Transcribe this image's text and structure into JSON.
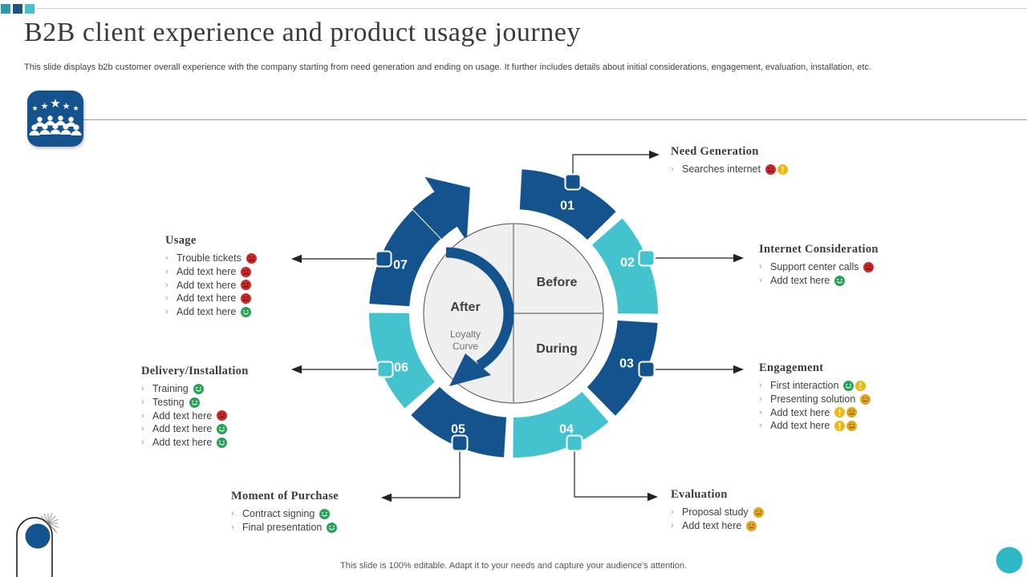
{
  "slide": {
    "title": "B2B client experience and product usage journey",
    "subtitle": "This slide displays b2b customer overall experience with the company starting from need generation and ending on usage. It  further includes details about initial  considerations, engagement, evaluation, installation,  etc.",
    "footer": "This slide is 100% editable.  Adapt it to your needs and capture your audience's attention."
  },
  "colors": {
    "navy": "#15538e",
    "teal": "#44c3cf",
    "accent_square_1": "#2d9aa9",
    "accent_square_2": "#1c537f",
    "accent_square_3": "#45bfcb",
    "corner_dot": "#2eb8c5",
    "happy": "#27a355",
    "sad": "#c62a2a",
    "neutral": "#dfa61f",
    "warning": "#efb810"
  },
  "wheel": {
    "center": {
      "before": "Before",
      "during": "During",
      "after": "After",
      "loyalty": [
        "Loyalty",
        "Curve"
      ]
    },
    "segments": [
      {
        "number": "01",
        "color": "#15538e"
      },
      {
        "number": "02",
        "color": "#44c3cf"
      },
      {
        "number": "03",
        "color": "#15538e"
      },
      {
        "number": "04",
        "color": "#44c3cf"
      },
      {
        "number": "05",
        "color": "#15538e"
      },
      {
        "number": "06",
        "color": "#44c3cf"
      },
      {
        "number": "07",
        "color": "#15538e"
      }
    ]
  },
  "sections": [
    {
      "id": "need-generation",
      "title": "Need Generation",
      "items": [
        {
          "text": "Searches internet",
          "icons": [
            "sad",
            "warn"
          ]
        }
      ]
    },
    {
      "id": "internet-consideration",
      "title": "Internet  Consideration",
      "items": [
        {
          "text": "Support center calls",
          "icons": [
            "sad"
          ]
        },
        {
          "text": "Add text here",
          "icons": [
            "happy"
          ]
        }
      ]
    },
    {
      "id": "engagement",
      "title": "Engagement",
      "items": [
        {
          "text": "First interaction",
          "icons": [
            "happy",
            "warn"
          ]
        },
        {
          "text": "Presenting solution",
          "icons": [
            "neutral"
          ]
        },
        {
          "text": "Add text here",
          "icons": [
            "warn",
            "neutral"
          ]
        },
        {
          "text": "Add text here",
          "icons": [
            "warn",
            "neutral"
          ]
        }
      ]
    },
    {
      "id": "evaluation",
      "title": "Evaluation",
      "items": [
        {
          "text": "Proposal study",
          "icons": [
            "neutral"
          ]
        },
        {
          "text": "Add text here",
          "icons": [
            "neutral"
          ]
        }
      ]
    },
    {
      "id": "moment-of-purchase",
      "title": "Moment of Purchase",
      "items": [
        {
          "text": "Contract signing",
          "icons": [
            "happy"
          ]
        },
        {
          "text": "Final presentation",
          "icons": [
            "happy"
          ]
        }
      ]
    },
    {
      "id": "delivery-installation",
      "title": "Delivery/Installation",
      "items": [
        {
          "text": "Training",
          "icons": [
            "happy"
          ]
        },
        {
          "text": "Testing",
          "icons": [
            "happy"
          ]
        },
        {
          "text": "Add text here",
          "icons": [
            "sad"
          ]
        },
        {
          "text": "Add text here",
          "icons": [
            "happy"
          ]
        },
        {
          "text": "Add text here",
          "icons": [
            "happy"
          ]
        }
      ]
    },
    {
      "id": "usage",
      "title": "Usage",
      "items": [
        {
          "text": "Trouble tickets",
          "icons": [
            "sad"
          ]
        },
        {
          "text": "Add text here",
          "icons": [
            "sad"
          ]
        },
        {
          "text": "Add text here",
          "icons": [
            "sad"
          ]
        },
        {
          "text": "Add text here",
          "icons": [
            "sad"
          ]
        },
        {
          "text": "Add text here",
          "icons": [
            "happy"
          ]
        }
      ]
    }
  ]
}
